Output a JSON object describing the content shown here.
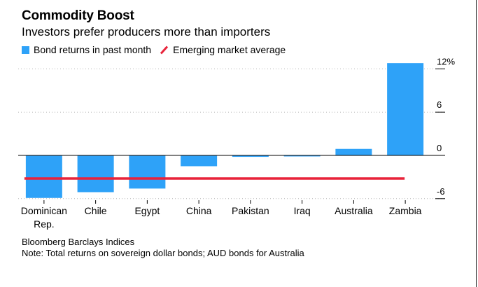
{
  "header": {
    "title": "Commodity Boost",
    "subtitle": "Investors prefer producers more than importers"
  },
  "legend": {
    "bar_label": "Bond returns in past month",
    "line_label": "Emerging market average"
  },
  "colors": {
    "bar": "#2ea2f8",
    "average_line": "#e8233a",
    "axis": "#000000",
    "gridline": "#b3b3b3"
  },
  "chart_data": {
    "type": "bar",
    "title": "Commodity Boost",
    "subtitle": "Investors prefer producers more than importers",
    "categories": [
      "Dominican Rep.",
      "Chile",
      "Egypt",
      "China",
      "Pakistan",
      "Iraq",
      "Australia",
      "Zambia"
    ],
    "category_labels": [
      [
        "Dominican",
        "Rep."
      ],
      [
        "Chile"
      ],
      [
        "Egypt"
      ],
      [
        "China"
      ],
      [
        "Pakistan"
      ],
      [
        "Iraq"
      ],
      [
        "Australia"
      ],
      [
        "Zambia"
      ]
    ],
    "series": [
      {
        "name": "Bond returns in past month",
        "values": [
          -5.9,
          -5.1,
          -4.6,
          -1.5,
          -0.2,
          -0.1,
          0.9,
          12.8
        ]
      }
    ],
    "reference_line": {
      "name": "Emerging market average",
      "value": -3.2
    },
    "ylim": [
      -7,
      14
    ],
    "yticks": [
      -6,
      0,
      6,
      12
    ],
    "ytick_labels": [
      "-6",
      "0",
      "6",
      "12%"
    ],
    "y_axis_side": "right",
    "grid": true,
    "legend_position": "top-left",
    "xlabel": "",
    "ylabel": ""
  },
  "footer": {
    "source": "Bloomberg Barclays Indices",
    "note": "Note: Total returns on sovereign dollar bonds; AUD bonds for Australia"
  }
}
